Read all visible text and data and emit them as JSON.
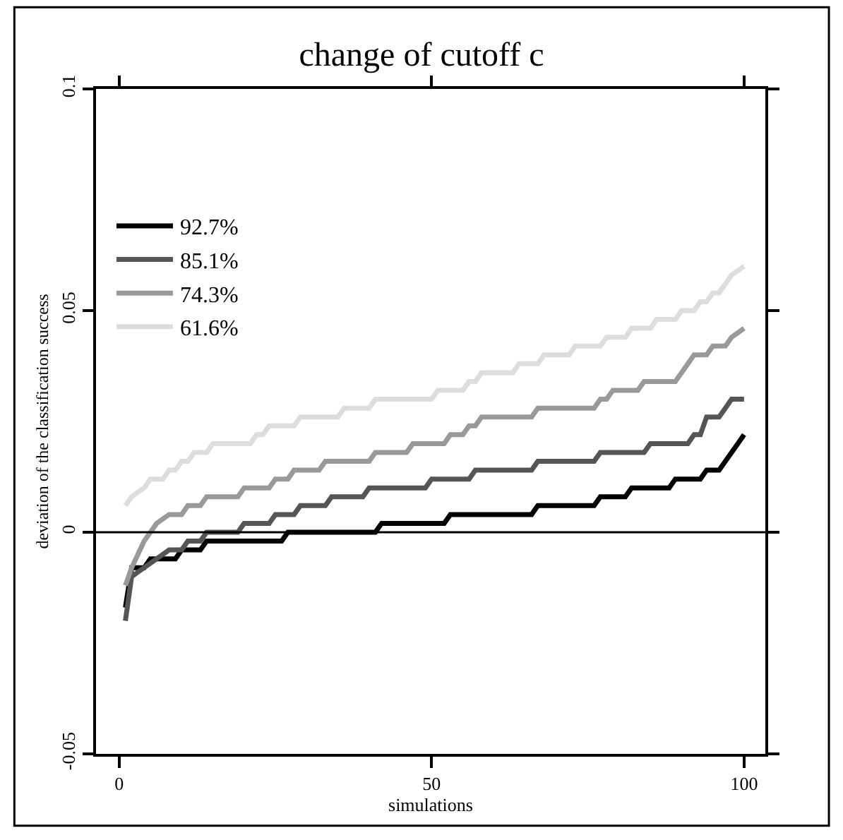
{
  "chart_data": {
    "type": "line",
    "title": "change of cutoff c",
    "xlabel": "simulations",
    "ylabel": "deviation of the classification success",
    "xlim": [
      -3.7,
      103.4
    ],
    "xticks": [
      0,
      50,
      100
    ],
    "ylim": [
      -0.05,
      0.1
    ],
    "yticks": [
      -0.05,
      0,
      0.05,
      0.1
    ],
    "grid": false,
    "legend": "top left",
    "marker": "none",
    "line_style": "solid",
    "ref_lines": [
      {
        "axis": "y",
        "value": 0,
        "color": "#000000"
      }
    ],
    "series": [
      {
        "name": "92.7%",
        "color": "#000000",
        "x": [
          1,
          2,
          4,
          5,
          9,
          10,
          13,
          14,
          26,
          27,
          41,
          42,
          52,
          53,
          66,
          67,
          76,
          77,
          81,
          82,
          88,
          89,
          93,
          94,
          96,
          97,
          98,
          99,
          100
        ],
        "values": [
          -0.017,
          -0.008,
          -0.008,
          -0.006,
          -0.006,
          -0.004,
          -0.004,
          -0.002,
          -0.002,
          0,
          0,
          0.002,
          0.002,
          0.004,
          0.004,
          0.006,
          0.006,
          0.008,
          0.008,
          0.01,
          0.01,
          0.012,
          0.012,
          0.014,
          0.014,
          0.016,
          0.018,
          0.02,
          0.022
        ]
      },
      {
        "name": "85.1%",
        "color": "#555555",
        "x": [
          1,
          2,
          3,
          4,
          5,
          6,
          7,
          8,
          10,
          11,
          13,
          14,
          19,
          20,
          24,
          25,
          28,
          29,
          33,
          34,
          39,
          40,
          49,
          50,
          56,
          57,
          66,
          67,
          76,
          77,
          84,
          85,
          91,
          92,
          93,
          94,
          96,
          97,
          98,
          100
        ],
        "values": [
          -0.02,
          -0.01,
          -0.009,
          -0.008,
          -0.007,
          -0.006,
          -0.005,
          -0.004,
          -0.004,
          -0.002,
          -0.002,
          0,
          0,
          0.002,
          0.002,
          0.004,
          0.004,
          0.006,
          0.006,
          0.008,
          0.008,
          0.01,
          0.01,
          0.012,
          0.012,
          0.014,
          0.014,
          0.016,
          0.016,
          0.018,
          0.018,
          0.02,
          0.02,
          0.022,
          0.022,
          0.026,
          0.026,
          0.028,
          0.03,
          0.03
        ]
      },
      {
        "name": "74.3%",
        "color": "#999999",
        "x": [
          1,
          2,
          3,
          4,
          5,
          6,
          7,
          8,
          10,
          11,
          13,
          14,
          19,
          20,
          24,
          25,
          27,
          28,
          32,
          33,
          40,
          41,
          46,
          47,
          52,
          53,
          55,
          56,
          57,
          58,
          66,
          67,
          76,
          77,
          78,
          79,
          83,
          84,
          89,
          90,
          91,
          92,
          94,
          95,
          97,
          98,
          100
        ],
        "values": [
          -0.012,
          -0.008,
          -0.005,
          -0.002,
          0,
          0.002,
          0.003,
          0.004,
          0.004,
          0.006,
          0.006,
          0.008,
          0.008,
          0.01,
          0.01,
          0.012,
          0.012,
          0.014,
          0.014,
          0.016,
          0.016,
          0.018,
          0.018,
          0.02,
          0.02,
          0.022,
          0.022,
          0.024,
          0.024,
          0.026,
          0.026,
          0.028,
          0.028,
          0.03,
          0.03,
          0.032,
          0.032,
          0.034,
          0.034,
          0.036,
          0.038,
          0.04,
          0.04,
          0.042,
          0.042,
          0.044,
          0.046
        ]
      },
      {
        "name": "61.6%",
        "color": "#dddddd",
        "x": [
          1,
          2,
          3,
          4,
          5,
          7,
          8,
          9,
          10,
          11,
          12,
          14,
          15,
          21,
          22,
          23,
          24,
          28,
          29,
          35,
          36,
          40,
          41,
          50,
          51,
          55,
          56,
          57,
          58,
          63,
          64,
          67,
          68,
          72,
          73,
          77,
          78,
          81,
          82,
          85,
          86,
          89,
          90,
          92,
          93,
          94,
          95,
          96,
          97,
          98,
          100
        ],
        "values": [
          0.006,
          0.008,
          0.009,
          0.01,
          0.012,
          0.012,
          0.014,
          0.014,
          0.016,
          0.016,
          0.018,
          0.018,
          0.02,
          0.02,
          0.022,
          0.022,
          0.024,
          0.024,
          0.026,
          0.026,
          0.028,
          0.028,
          0.03,
          0.03,
          0.032,
          0.032,
          0.034,
          0.034,
          0.036,
          0.036,
          0.038,
          0.038,
          0.04,
          0.04,
          0.042,
          0.042,
          0.044,
          0.044,
          0.046,
          0.046,
          0.048,
          0.048,
          0.05,
          0.05,
          0.052,
          0.052,
          0.054,
          0.054,
          0.056,
          0.058,
          0.06
        ]
      }
    ]
  }
}
